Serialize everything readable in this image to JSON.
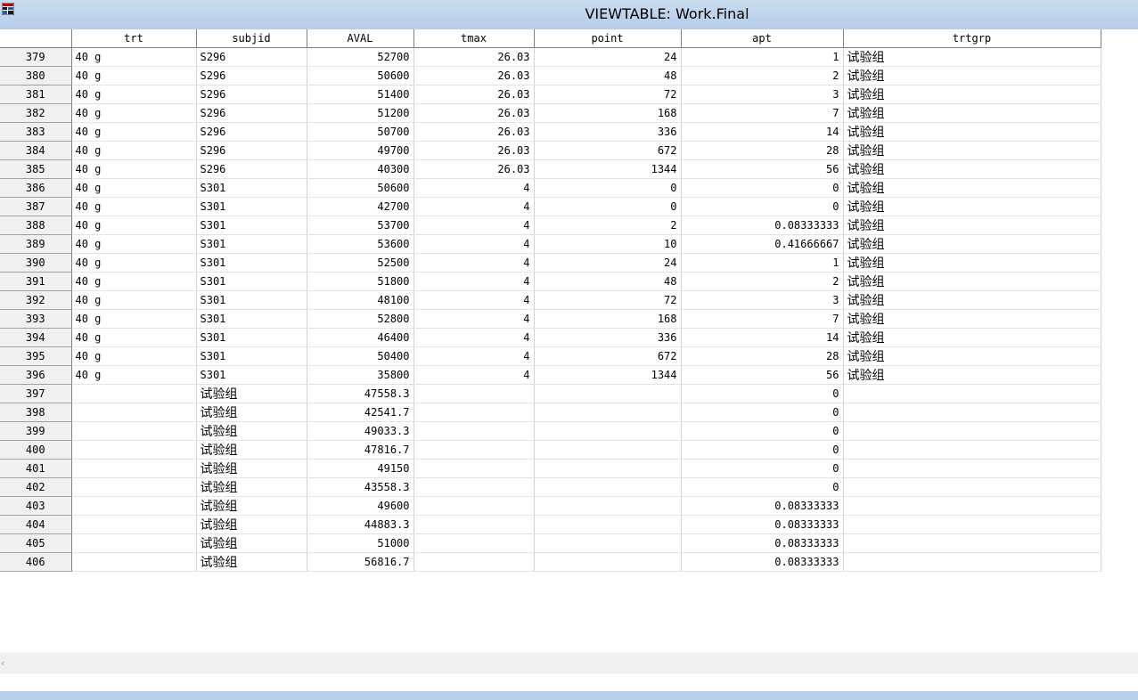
{
  "window": {
    "title": "VIEWTABLE: Work.Final"
  },
  "columns": [
    "trt",
    "subjid",
    "AVAL",
    "tmax",
    "point",
    "apt",
    "trtgrp"
  ],
  "rows": [
    {
      "n": "379",
      "trt": "40 g",
      "subjid": "S296",
      "AVAL": "52700",
      "tmax": "26.03",
      "point": "24",
      "apt": "1",
      "trtgrp": "试验组"
    },
    {
      "n": "380",
      "trt": "40 g",
      "subjid": "S296",
      "AVAL": "50600",
      "tmax": "26.03",
      "point": "48",
      "apt": "2",
      "trtgrp": "试验组"
    },
    {
      "n": "381",
      "trt": "40 g",
      "subjid": "S296",
      "AVAL": "51400",
      "tmax": "26.03",
      "point": "72",
      "apt": "3",
      "trtgrp": "试验组"
    },
    {
      "n": "382",
      "trt": "40 g",
      "subjid": "S296",
      "AVAL": "51200",
      "tmax": "26.03",
      "point": "168",
      "apt": "7",
      "trtgrp": "试验组"
    },
    {
      "n": "383",
      "trt": "40 g",
      "subjid": "S296",
      "AVAL": "50700",
      "tmax": "26.03",
      "point": "336",
      "apt": "14",
      "trtgrp": "试验组"
    },
    {
      "n": "384",
      "trt": "40 g",
      "subjid": "S296",
      "AVAL": "49700",
      "tmax": "26.03",
      "point": "672",
      "apt": "28",
      "trtgrp": "试验组"
    },
    {
      "n": "385",
      "trt": "40 g",
      "subjid": "S296",
      "AVAL": "40300",
      "tmax": "26.03",
      "point": "1344",
      "apt": "56",
      "trtgrp": "试验组"
    },
    {
      "n": "386",
      "trt": "40 g",
      "subjid": "S301",
      "AVAL": "50600",
      "tmax": "4",
      "point": "0",
      "apt": "0",
      "trtgrp": "试验组"
    },
    {
      "n": "387",
      "trt": "40 g",
      "subjid": "S301",
      "AVAL": "42700",
      "tmax": "4",
      "point": "0",
      "apt": "0",
      "trtgrp": "试验组"
    },
    {
      "n": "388",
      "trt": "40 g",
      "subjid": "S301",
      "AVAL": "53700",
      "tmax": "4",
      "point": "2",
      "apt": "0.08333333",
      "trtgrp": "试验组"
    },
    {
      "n": "389",
      "trt": "40 g",
      "subjid": "S301",
      "AVAL": "53600",
      "tmax": "4",
      "point": "10",
      "apt": "0.41666667",
      "trtgrp": "试验组"
    },
    {
      "n": "390",
      "trt": "40 g",
      "subjid": "S301",
      "AVAL": "52500",
      "tmax": "4",
      "point": "24",
      "apt": "1",
      "trtgrp": "试验组"
    },
    {
      "n": "391",
      "trt": "40 g",
      "subjid": "S301",
      "AVAL": "51800",
      "tmax": "4",
      "point": "48",
      "apt": "2",
      "trtgrp": "试验组"
    },
    {
      "n": "392",
      "trt": "40 g",
      "subjid": "S301",
      "AVAL": "48100",
      "tmax": "4",
      "point": "72",
      "apt": "3",
      "trtgrp": "试验组"
    },
    {
      "n": "393",
      "trt": "40 g",
      "subjid": "S301",
      "AVAL": "52800",
      "tmax": "4",
      "point": "168",
      "apt": "7",
      "trtgrp": "试验组"
    },
    {
      "n": "394",
      "trt": "40 g",
      "subjid": "S301",
      "AVAL": "46400",
      "tmax": "4",
      "point": "336",
      "apt": "14",
      "trtgrp": "试验组"
    },
    {
      "n": "395",
      "trt": "40 g",
      "subjid": "S301",
      "AVAL": "50400",
      "tmax": "4",
      "point": "672",
      "apt": "28",
      "trtgrp": "试验组"
    },
    {
      "n": "396",
      "trt": "40 g",
      "subjid": "S301",
      "AVAL": "35800",
      "tmax": "4",
      "point": "1344",
      "apt": "56",
      "trtgrp": "试验组"
    },
    {
      "n": "397",
      "trt": "",
      "subjid": "试验组",
      "AVAL": "47558.3",
      "tmax": "",
      "point": "",
      "apt": "0",
      "trtgrp": ""
    },
    {
      "n": "398",
      "trt": "",
      "subjid": "试验组",
      "AVAL": "42541.7",
      "tmax": "",
      "point": "",
      "apt": "0",
      "trtgrp": ""
    },
    {
      "n": "399",
      "trt": "",
      "subjid": "试验组",
      "AVAL": "49033.3",
      "tmax": "",
      "point": "",
      "apt": "0",
      "trtgrp": ""
    },
    {
      "n": "400",
      "trt": "",
      "subjid": "试验组",
      "AVAL": "47816.7",
      "tmax": "",
      "point": "",
      "apt": "0",
      "trtgrp": ""
    },
    {
      "n": "401",
      "trt": "",
      "subjid": "试验组",
      "AVAL": "49150",
      "tmax": "",
      "point": "",
      "apt": "0",
      "trtgrp": ""
    },
    {
      "n": "402",
      "trt": "",
      "subjid": "试验组",
      "AVAL": "43558.3",
      "tmax": "",
      "point": "",
      "apt": "0",
      "trtgrp": ""
    },
    {
      "n": "403",
      "trt": "",
      "subjid": "试验组",
      "AVAL": "49600",
      "tmax": "",
      "point": "",
      "apt": "0.08333333",
      "trtgrp": ""
    },
    {
      "n": "404",
      "trt": "",
      "subjid": "试验组",
      "AVAL": "44883.3",
      "tmax": "",
      "point": "",
      "apt": "0.08333333",
      "trtgrp": ""
    },
    {
      "n": "405",
      "trt": "",
      "subjid": "试验组",
      "AVAL": "51000",
      "tmax": "",
      "point": "",
      "apt": "0.08333333",
      "trtgrp": ""
    },
    {
      "n": "406",
      "trt": "",
      "subjid": "试验组",
      "AVAL": "56816.7",
      "tmax": "",
      "point": "",
      "apt": "0.08333333",
      "trtgrp": ""
    }
  ],
  "colors": {
    "titlebar": "#c3d7ee",
    "statusbar": "#b8cfe8",
    "rowheader": "#f0f0f0"
  },
  "icons": {
    "app": "sas-table-icon",
    "scroll_left": "chevron-left-icon"
  }
}
